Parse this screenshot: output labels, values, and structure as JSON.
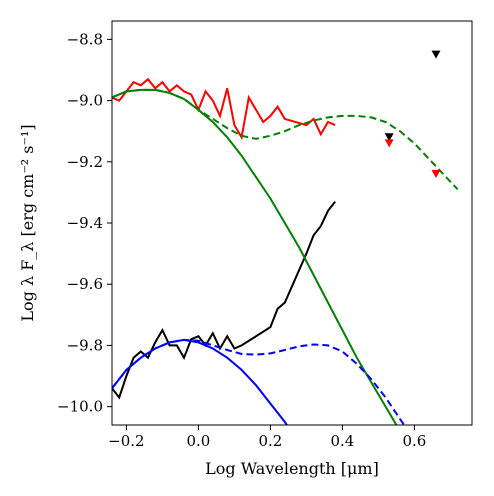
{
  "chart_data": {
    "type": "line",
    "title": "",
    "xlabel": "Log Wavelength [μm]",
    "ylabel": "Log λ F_λ [erg cm⁻² s⁻¹]",
    "xlim": [
      -0.24,
      0.76
    ],
    "ylim": [
      -10.06,
      -8.74
    ],
    "x_ticks": [
      -0.2,
      0.0,
      0.2,
      0.4,
      0.6
    ],
    "x_tick_labels": [
      "−0.2",
      "0.0",
      "0.2",
      "0.4",
      "0.6"
    ],
    "y_ticks": [
      -10.0,
      -9.8,
      -9.6,
      -9.4,
      -9.2,
      -9.0,
      -8.8
    ],
    "y_tick_labels": [
      "−10.0",
      "−9.8",
      "−9.6",
      "−9.4",
      "−9.2",
      "−9.0",
      "−8.8"
    ],
    "grid": false,
    "series": [
      {
        "color": "#ff0000",
        "style": "solid",
        "x": [
          -0.24,
          -0.22,
          -0.2,
          -0.18,
          -0.16,
          -0.14,
          -0.12,
          -0.1,
          -0.08,
          -0.06,
          -0.04,
          -0.02,
          0.0,
          0.02,
          0.04,
          0.06,
          0.08,
          0.1,
          0.12,
          0.14,
          0.16,
          0.18,
          0.2,
          0.22,
          0.24,
          0.3,
          0.32,
          0.34,
          0.36,
          0.38
        ],
        "y": [
          -8.99,
          -9.0,
          -8.97,
          -8.94,
          -8.95,
          -8.93,
          -8.96,
          -8.94,
          -8.97,
          -8.95,
          -8.97,
          -8.98,
          -9.03,
          -8.97,
          -9.0,
          -9.05,
          -8.96,
          -9.08,
          -9.12,
          -8.99,
          -9.03,
          -9.07,
          -9.05,
          -9.02,
          -9.06,
          -9.08,
          -9.06,
          -9.11,
          -9.07,
          -9.08
        ]
      },
      {
        "color": "#000000",
        "style": "solid",
        "x": [
          -0.24,
          -0.22,
          -0.2,
          -0.18,
          -0.16,
          -0.14,
          -0.12,
          -0.1,
          -0.08,
          -0.06,
          -0.04,
          -0.02,
          0.0,
          0.02,
          0.04,
          0.06,
          0.08,
          0.1,
          0.12,
          0.2,
          0.22,
          0.24,
          0.3,
          0.32,
          0.34,
          0.36,
          0.38
        ],
        "y": [
          -9.94,
          -9.97,
          -9.9,
          -9.84,
          -9.82,
          -9.84,
          -9.79,
          -9.75,
          -9.8,
          -9.8,
          -9.84,
          -9.78,
          -9.77,
          -9.8,
          -9.76,
          -9.81,
          -9.77,
          -9.81,
          -9.8,
          -9.74,
          -9.68,
          -9.66,
          -9.5,
          -9.44,
          -9.41,
          -9.36,
          -9.33
        ]
      },
      {
        "color": "#008000",
        "style": "dashed",
        "x": [
          -0.24,
          -0.2,
          -0.16,
          -0.12,
          -0.08,
          -0.04,
          0.0,
          0.04,
          0.08,
          0.12,
          0.16,
          0.2,
          0.24,
          0.28,
          0.32,
          0.36,
          0.4,
          0.44,
          0.48,
          0.52,
          0.56,
          0.6,
          0.64,
          0.68,
          0.72
        ],
        "y": [
          -8.99,
          -8.97,
          -8.965,
          -8.965,
          -8.975,
          -8.995,
          -9.03,
          -9.06,
          -9.09,
          -9.115,
          -9.125,
          -9.115,
          -9.1,
          -9.08,
          -9.065,
          -9.055,
          -9.05,
          -9.05,
          -9.055,
          -9.07,
          -9.1,
          -9.14,
          -9.19,
          -9.24,
          -9.29
        ]
      },
      {
        "color": "#008000",
        "style": "solid",
        "x": [
          -0.24,
          -0.2,
          -0.16,
          -0.12,
          -0.08,
          -0.04,
          0.0,
          0.04,
          0.08,
          0.12,
          0.16,
          0.2,
          0.24,
          0.28,
          0.32,
          0.36,
          0.4,
          0.44,
          0.48,
          0.52,
          0.56,
          0.6
        ],
        "y": [
          -8.99,
          -8.97,
          -8.965,
          -8.965,
          -8.975,
          -8.995,
          -9.03,
          -9.07,
          -9.12,
          -9.18,
          -9.25,
          -9.32,
          -9.4,
          -9.48,
          -9.57,
          -9.66,
          -9.75,
          -9.84,
          -9.92,
          -10.0,
          -10.08,
          -10.12
        ]
      },
      {
        "color": "#0000ff",
        "style": "dashed",
        "x": [
          -0.24,
          -0.2,
          -0.16,
          -0.12,
          -0.08,
          -0.04,
          0.0,
          0.04,
          0.08,
          0.12,
          0.16,
          0.2,
          0.24,
          0.28,
          0.32,
          0.36,
          0.4,
          0.44,
          0.48,
          0.52,
          0.56,
          0.6,
          0.62
        ],
        "y": [
          -9.94,
          -9.88,
          -9.84,
          -9.81,
          -9.79,
          -9.782,
          -9.785,
          -9.8,
          -9.815,
          -9.828,
          -9.83,
          -9.826,
          -9.815,
          -9.803,
          -9.797,
          -9.8,
          -9.82,
          -9.86,
          -9.91,
          -9.97,
          -10.04,
          -10.11,
          -10.14
        ]
      },
      {
        "color": "#0000ff",
        "style": "solid",
        "x": [
          -0.24,
          -0.2,
          -0.16,
          -0.12,
          -0.08,
          -0.04,
          0.0,
          0.04,
          0.08,
          0.12,
          0.16,
          0.2,
          0.24,
          0.28
        ],
        "y": [
          -9.94,
          -9.88,
          -9.84,
          -9.81,
          -9.79,
          -9.782,
          -9.79,
          -9.81,
          -9.84,
          -9.88,
          -9.93,
          -9.99,
          -10.05,
          -10.12
        ]
      }
    ],
    "markers": [
      {
        "color": "#000000",
        "symbol": "down-triangle",
        "x": 0.66,
        "y": -8.85
      },
      {
        "color": "#000000",
        "symbol": "down-triangle",
        "x": 0.53,
        "y": -9.12
      },
      {
        "color": "#ff0000",
        "symbol": "down-triangle",
        "x": 0.53,
        "y": -9.14
      },
      {
        "color": "#ff0000",
        "symbol": "down-triangle",
        "x": 0.66,
        "y": -9.24
      }
    ]
  }
}
